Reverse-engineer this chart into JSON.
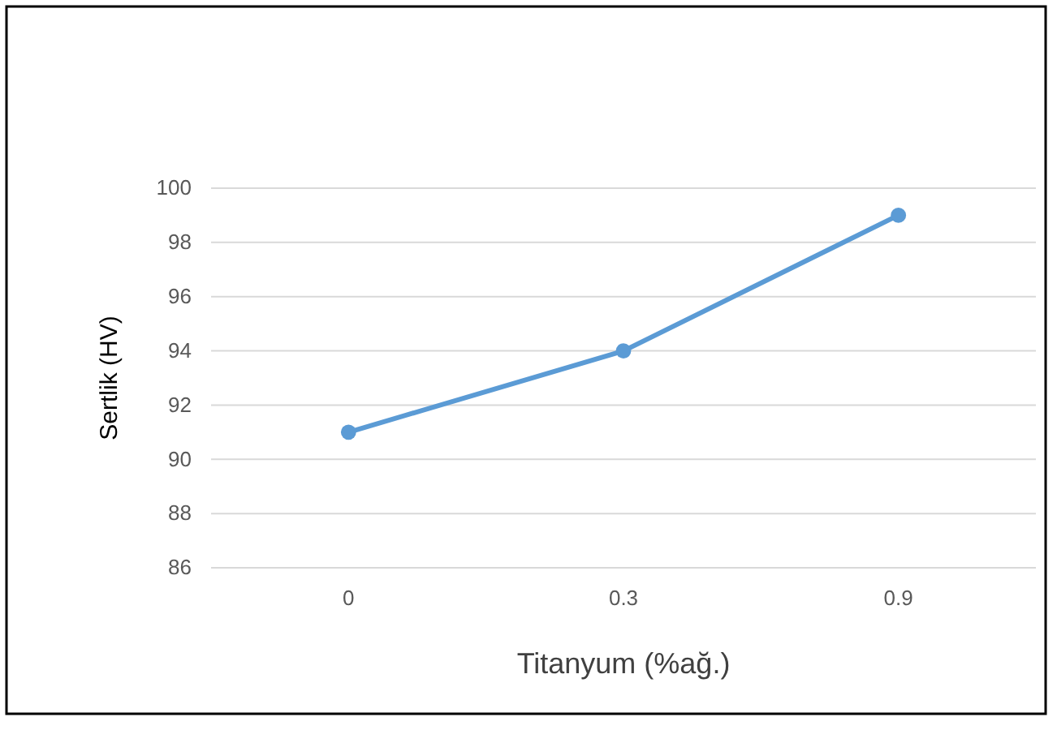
{
  "chart_data": {
    "type": "line",
    "xlabel": "Titanyum (%ağ.)",
    "ylabel": "Sertlik (HV)",
    "categories": [
      "0",
      "0.3",
      "0.9"
    ],
    "series": [
      {
        "color": "#5b9bd5",
        "values": [
          91,
          94,
          99
        ]
      }
    ],
    "ylim": [
      86,
      100
    ],
    "yticks": [
      86,
      88,
      90,
      92,
      94,
      96,
      98,
      100
    ],
    "grid": "y",
    "marker": "circle",
    "line_style": "solid"
  }
}
